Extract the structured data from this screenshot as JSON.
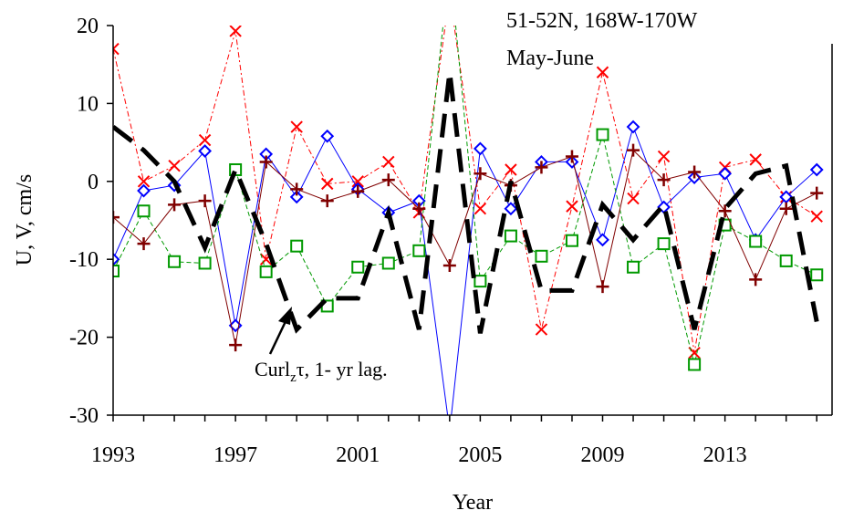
{
  "chart_data": {
    "type": "line",
    "annotations": {
      "region": "51-52N, 168W-170W",
      "season": "May-June",
      "curl_label_main": "Curl",
      "curl_label_sub": "z",
      "curl_label_rest": "τ, 1- yr lag."
    },
    "xlabel": "Year",
    "ylabel": "U, V, cm/s",
    "xlim": [
      1993,
      2016.5
    ],
    "ylim": [
      -30,
      20
    ],
    "x_ticks": [
      "1993",
      "1997",
      "2001",
      "2005",
      "2009",
      "2013"
    ],
    "y_ticks": [
      "20",
      "10",
      "0",
      "-10",
      "-20",
      "-30"
    ],
    "grid": false,
    "colors": {
      "red_x": "#ff0000",
      "blue_diamond": "#0000ff",
      "green_square": "#009900",
      "maroon_plus": "#800000",
      "curl": "#000000"
    },
    "series": [
      {
        "marker": "x",
        "color_key": "red_x",
        "x": [
          1993,
          1994,
          1995,
          1996,
          1997,
          1998,
          1999,
          2000,
          2001,
          2002,
          2003,
          2004,
          2005,
          2006,
          2007,
          2008,
          2009,
          2010,
          2011,
          2012,
          2013,
          2014,
          2015,
          2016
        ],
        "y": [
          17,
          0,
          2,
          5.3,
          19.3,
          -10,
          7,
          -0.3,
          0,
          2.5,
          -4,
          24,
          -3.5,
          1.5,
          -19,
          -3.2,
          14,
          -2.2,
          3.2,
          -22,
          1.8,
          2.8,
          -2,
          -4.5
        ]
      },
      {
        "marker": "diamond",
        "color_key": "blue_diamond",
        "x": [
          1993,
          1994,
          1995,
          1996,
          1997,
          1998,
          1999,
          2000,
          2001,
          2002,
          2003,
          2004,
          2005,
          2006,
          2007,
          2008,
          2009,
          2010,
          2011,
          2012,
          2013,
          2014,
          2015,
          2016
        ],
        "y": [
          -10,
          -1.2,
          -0.5,
          3.9,
          -18.5,
          3.5,
          -2,
          5.8,
          -1,
          -4,
          -2.5,
          -32,
          4.2,
          -3.5,
          2.5,
          2.5,
          -7.5,
          7,
          -3.3,
          0.5,
          1,
          -7.5,
          -2,
          1.5
        ]
      },
      {
        "marker": "square",
        "color_key": "green_square",
        "x": [
          1993,
          1994,
          1995,
          1996,
          1997,
          1998,
          1999,
          2000,
          2001,
          2002,
          2003,
          2004,
          2005,
          2006,
          2007,
          2008,
          2009,
          2010,
          2011,
          2012,
          2013,
          2014,
          2015,
          2016
        ],
        "y": [
          -11.5,
          -3.8,
          -10.3,
          -10.5,
          1.5,
          -11.6,
          -8.3,
          -16,
          -11,
          -10.5,
          -8.9,
          28,
          -12.8,
          -7,
          -9.6,
          -7.6,
          6,
          -11,
          -8,
          -23.5,
          -5.6,
          -7.7,
          -10.2,
          -12
        ]
      },
      {
        "marker": "plus",
        "color_key": "maroon_plus",
        "x": [
          1993,
          1994,
          1995,
          1996,
          1997,
          1998,
          1999,
          2000,
          2001,
          2002,
          2003,
          2004,
          2005,
          2006,
          2007,
          2008,
          2009,
          2010,
          2011,
          2012,
          2013,
          2014,
          2015,
          2016
        ],
        "y": [
          -4.6,
          -8,
          -3,
          -2.5,
          -21,
          2.5,
          -1,
          -2.5,
          -1.3,
          0.2,
          -3.5,
          -10.8,
          1,
          -0.5,
          1.8,
          3.2,
          -13.5,
          4,
          0.2,
          1.2,
          -3.8,
          -12.6,
          -3.5,
          -1.5
        ]
      },
      {
        "marker": "none",
        "style": "dashed",
        "color_key": "curl",
        "x": [
          1993,
          1994,
          1995,
          1996,
          1997,
          1998,
          1999,
          2000,
          2001,
          2002,
          2003,
          2004,
          2005,
          2006,
          2007,
          2008,
          2009,
          2010,
          2011,
          2012,
          2013,
          2014,
          2015,
          2016
        ],
        "y": [
          7,
          4,
          0,
          -8.5,
          1.5,
          -8,
          -19,
          -15,
          -15,
          -4,
          -19,
          14,
          -19.5,
          0,
          -14,
          -14,
          -3,
          -7.5,
          -3,
          -19,
          -3.5,
          1,
          2,
          -18
        ]
      }
    ]
  }
}
